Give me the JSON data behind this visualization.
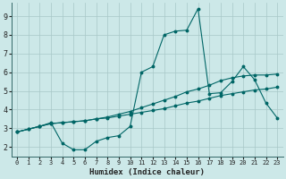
{
  "bg_color": "#cce8e8",
  "grid_color": "#a8c8c8",
  "line_color": "#006666",
  "xlabel": "Humidex (Indice chaleur)",
  "xlim": [
    -0.5,
    23.5
  ],
  "ylim": [
    1.5,
    9.7
  ],
  "yticks": [
    2,
    3,
    4,
    5,
    6,
    7,
    8,
    9
  ],
  "xticks": [
    0,
    1,
    2,
    3,
    4,
    5,
    6,
    7,
    8,
    9,
    10,
    11,
    12,
    13,
    14,
    15,
    16,
    17,
    18,
    19,
    20,
    21,
    22,
    23
  ],
  "series": [
    {
      "x": [
        0,
        2,
        3,
        4,
        5,
        6,
        7,
        8,
        9,
        10,
        11,
        12,
        13,
        14,
        15,
        16,
        17,
        18,
        19,
        20,
        21,
        22,
        23
      ],
      "y": [
        2.8,
        3.1,
        3.3,
        2.2,
        1.85,
        1.85,
        2.3,
        2.5,
        2.6,
        3.1,
        6.0,
        6.3,
        8.0,
        8.2,
        8.25,
        9.4,
        4.85,
        4.9,
        5.5,
        6.3,
        5.6,
        4.35,
        3.55
      ]
    },
    {
      "x": [
        0,
        1,
        2,
        3,
        4,
        5,
        6,
        7,
        8,
        9,
        10,
        11,
        12,
        13,
        14,
        15,
        16,
        17,
        18,
        19,
        20,
        21,
        22,
        23
      ],
      "y": [
        2.8,
        2.95,
        3.1,
        3.25,
        3.3,
        3.35,
        3.4,
        3.5,
        3.55,
        3.65,
        3.75,
        3.85,
        3.95,
        4.05,
        4.2,
        4.35,
        4.45,
        4.6,
        4.75,
        4.85,
        4.95,
        5.05,
        5.1,
        5.2
      ]
    },
    {
      "x": [
        0,
        1,
        2,
        3,
        4,
        5,
        6,
        7,
        8,
        9,
        10,
        11,
        12,
        13,
        14,
        15,
        16,
        17,
        18,
        19,
        20,
        21,
        22,
        23
      ],
      "y": [
        2.8,
        2.95,
        3.1,
        3.25,
        3.3,
        3.35,
        3.4,
        3.5,
        3.6,
        3.75,
        3.9,
        4.1,
        4.3,
        4.5,
        4.7,
        4.95,
        5.1,
        5.3,
        5.55,
        5.7,
        5.8,
        5.85,
        5.85,
        5.9
      ]
    }
  ]
}
